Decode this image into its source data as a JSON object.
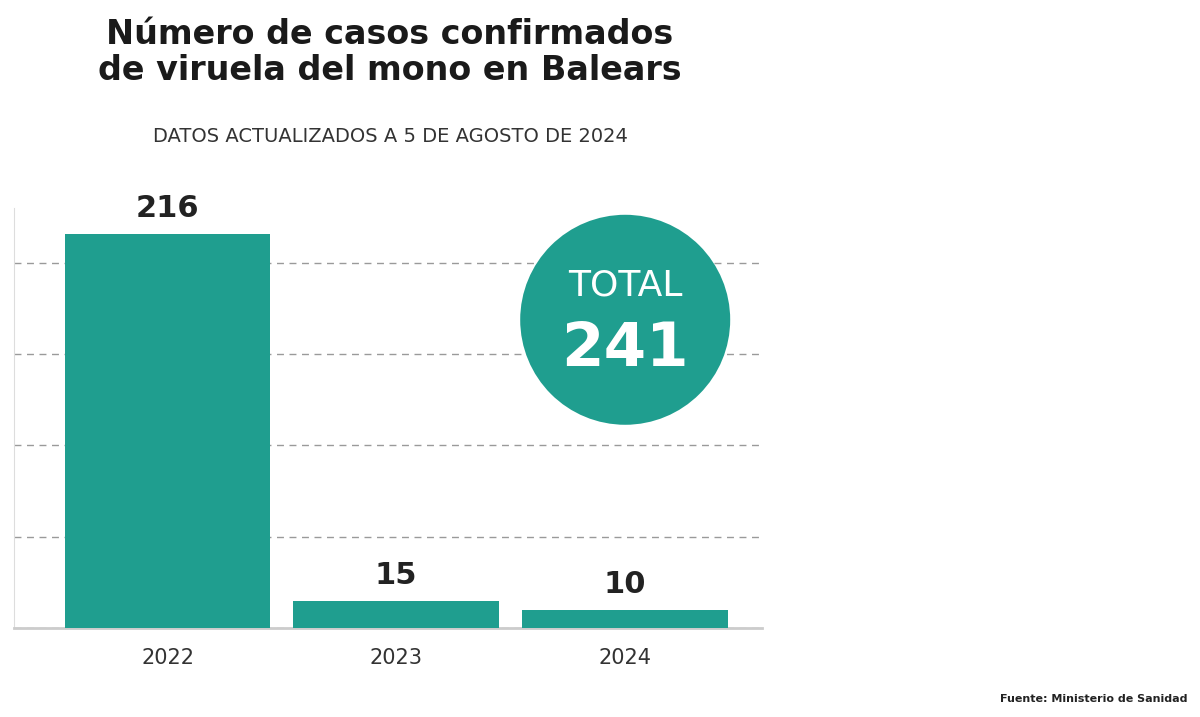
{
  "chart_data": {
    "type": "bar",
    "title": "Número de casos confirmados de viruela del mono en Balears",
    "subtitle": "DATOS ACTUALIZADOS A 5 DE AGOSTO DE 2024",
    "categories": [
      "2022",
      "2023",
      "2024"
    ],
    "values": [
      216,
      15,
      10
    ],
    "color": "#1f9e8f",
    "ylim": [
      0,
      230
    ],
    "yticks": [
      0,
      50,
      100,
      150,
      200
    ],
    "grid": true,
    "data_labels": true,
    "tick_labels": "x",
    "total": {
      "label": "TOTAL",
      "value": 241
    },
    "source": "Fuente: Ministerio de Sanidad"
  }
}
